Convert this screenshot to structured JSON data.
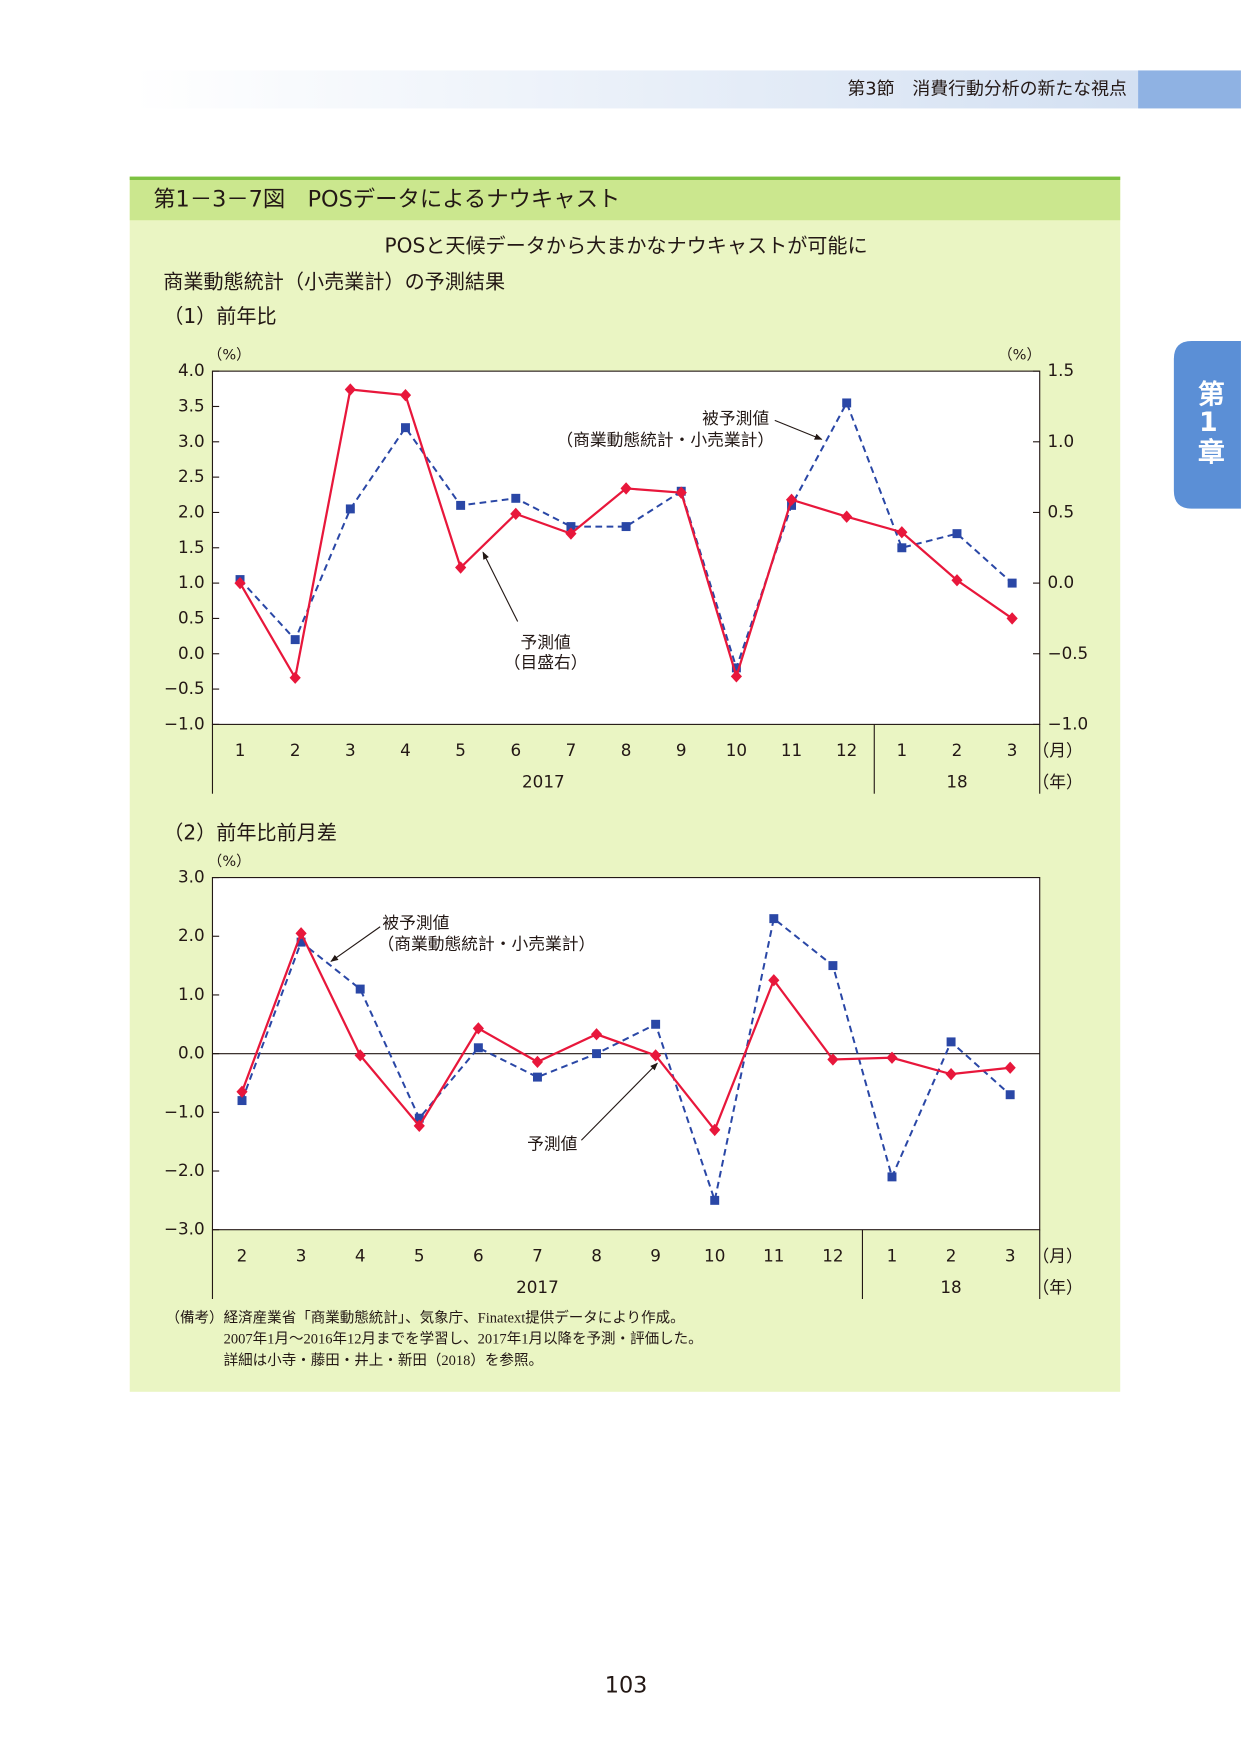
{
  "header": {
    "section": "第3節　消費行動分析の新たな視点"
  },
  "side_tab": "第1章",
  "figure": {
    "title": "第1－3－7図　POSデータによるナウキャスト",
    "subtitle": "POSと天候データから大まかなナウキャストが可能に",
    "heading": "商業動態統計（小売業計）の予測結果"
  },
  "chart_data": [
    {
      "type": "line",
      "title": "（1）前年比",
      "categories": [
        "1",
        "2",
        "3",
        "4",
        "5",
        "6",
        "7",
        "8",
        "9",
        "10",
        "11",
        "12",
        "1",
        "2",
        "3"
      ],
      "years": [
        "2017",
        "18"
      ],
      "x_unit": "（月）",
      "year_unit": "（年）",
      "y_unit": "（%）",
      "y2_unit": "（%）",
      "ylim": [
        -1.0,
        4.0
      ],
      "yticks": [
        {
          "value": 4.0,
          "label": "4.0"
        },
        {
          "value": 3.5,
          "label": "3.5"
        },
        {
          "value": 3.0,
          "label": "3.0"
        },
        {
          "value": 2.5,
          "label": "2.5"
        },
        {
          "value": 2.0,
          "label": "2.0"
        },
        {
          "value": 1.5,
          "label": "1.5"
        },
        {
          "value": 1.0,
          "label": "1.0"
        },
        {
          "value": 0.5,
          "label": "0.5"
        },
        {
          "value": 0.0,
          "label": "0.0"
        },
        {
          "value": -0.5,
          "label": "−0.5"
        },
        {
          "value": -1.0,
          "label": "−1.0"
        }
      ],
      "y2lim": [
        -1.0,
        1.5
      ],
      "y2ticks": [
        {
          "value": 1.5,
          "label": "1.5"
        },
        {
          "value": 1.0,
          "label": "1.0"
        },
        {
          "value": 0.5,
          "label": "0.5"
        },
        {
          "value": 0.0,
          "label": "0.0"
        },
        {
          "value": -0.5,
          "label": "−0.5"
        },
        {
          "value": -1.0,
          "label": "−1.0"
        }
      ],
      "zero_line": false,
      "series": [
        {
          "name": "被予測値",
          "note": "（商業動態統計・小売業計）",
          "color": "#2a47a6",
          "dash": true,
          "marker": "square",
          "values": [
            1.05,
            0.2,
            2.05,
            3.2,
            2.1,
            2.2,
            1.8,
            1.8,
            2.3,
            -0.2,
            2.1,
            3.55,
            1.5,
            1.7,
            1.0
          ]
        },
        {
          "name": "予測値",
          "note": "（目盛右）",
          "color": "#e8173b",
          "dash": false,
          "marker": "diamond",
          "axis": "y2",
          "values": [
            0.0,
            -0.67,
            1.37,
            1.33,
            0.11,
            0.49,
            0.35,
            0.67,
            0.64,
            -0.66,
            0.59,
            0.47,
            0.36,
            0.02,
            -0.25
          ]
        }
      ]
    },
    {
      "type": "line",
      "title": "（2）前年比前月差",
      "categories": [
        "2",
        "3",
        "4",
        "5",
        "6",
        "7",
        "8",
        "9",
        "10",
        "11",
        "12",
        "1",
        "2",
        "3"
      ],
      "years": [
        "2017",
        "18"
      ],
      "x_unit": "（月）",
      "year_unit": "（年）",
      "y_unit": "（%）",
      "ylim": [
        -3.0,
        3.0
      ],
      "yticks": [
        {
          "value": 3.0,
          "label": "3.0"
        },
        {
          "value": 2.0,
          "label": "2.0"
        },
        {
          "value": 1.0,
          "label": "1.0"
        },
        {
          "value": 0.0,
          "label": "0.0"
        },
        {
          "value": -1.0,
          "label": "−1.0"
        },
        {
          "value": -2.0,
          "label": "−2.0"
        },
        {
          "value": -3.0,
          "label": "−3.0"
        }
      ],
      "zero_line": true,
      "series": [
        {
          "name": "被予測値",
          "note": "（商業動態統計・小売業計）",
          "color": "#2a47a6",
          "dash": true,
          "marker": "square",
          "values": [
            -0.8,
            1.9,
            1.1,
            -1.1,
            0.1,
            -0.4,
            0.0,
            0.5,
            -2.5,
            2.3,
            1.5,
            -2.1,
            0.2,
            -0.7
          ]
        },
        {
          "name": "予測値",
          "color": "#e8173b",
          "dash": false,
          "marker": "diamond",
          "values": [
            -0.65,
            2.05,
            -0.03,
            -1.23,
            0.43,
            -0.14,
            0.33,
            -0.03,
            -1.3,
            1.25,
            -0.1,
            -0.07,
            -0.35,
            -0.24
          ]
        }
      ]
    }
  ],
  "notes": {
    "label": "（備考）",
    "lines": [
      "経済産業省「商業動態統計」、気象庁、Finatext提供データにより作成。",
      "2007年1月～2016年12月までを学習し、2017年1月以降を予測・評価した。",
      "詳細は小寺・藤田・井上・新田（2018）を参照。"
    ]
  },
  "page_number": "103"
}
